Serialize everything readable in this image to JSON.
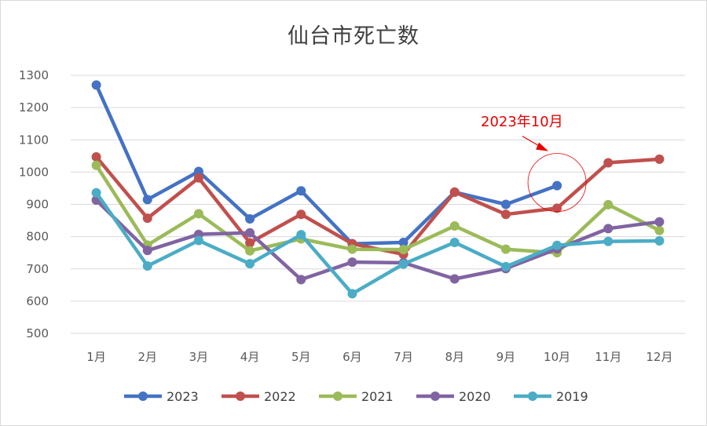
{
  "chart_data": {
    "type": "line",
    "title": "仙台市死亡数",
    "categories": [
      "1月",
      "2月",
      "3月",
      "4月",
      "5月",
      "6月",
      "7月",
      "8月",
      "9月",
      "10月",
      "11月",
      "12月"
    ],
    "ylim": [
      500,
      1300
    ],
    "yticks": [
      500,
      600,
      700,
      800,
      900,
      1000,
      1100,
      1200,
      1300
    ],
    "grid": true,
    "legend_position": "bottom",
    "series": [
      {
        "name": "2023",
        "color": "#4472c4",
        "values": [
          1270,
          915,
          1002,
          855,
          942,
          778,
          782,
          938,
          900,
          958,
          null,
          null
        ]
      },
      {
        "name": "2022",
        "color": "#c0504d",
        "values": [
          1047,
          857,
          982,
          781,
          869,
          778,
          745,
          938,
          869,
          888,
          1029,
          1040
        ]
      },
      {
        "name": "2021",
        "color": "#9bbb59",
        "values": [
          1021,
          774,
          871,
          756,
          793,
          761,
          760,
          833,
          761,
          750,
          899,
          819
        ]
      },
      {
        "name": "2020",
        "color": "#8064a2",
        "values": [
          913,
          757,
          807,
          812,
          667,
          721,
          719,
          669,
          701,
          762,
          825,
          846
        ]
      },
      {
        "name": "2019",
        "color": "#4bacc6",
        "values": [
          936,
          709,
          788,
          716,
          806,
          623,
          715,
          782,
          707,
          773,
          785,
          787
        ]
      }
    ],
    "annotation": {
      "text": "2023年10月",
      "color": "#e60000",
      "month_index": 9,
      "value": 958
    }
  }
}
